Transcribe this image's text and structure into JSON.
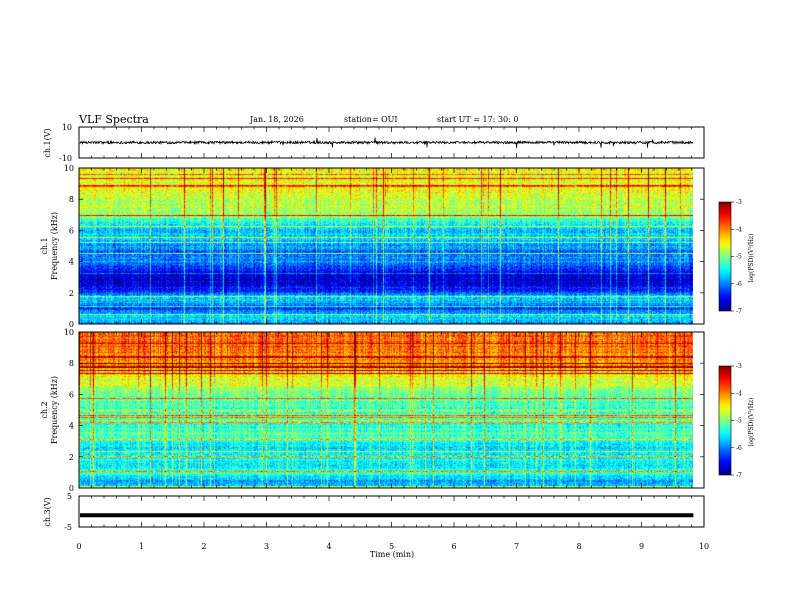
{
  "header": {
    "title": "VLF Spectra",
    "date": "Jan. 18, 2026",
    "station": "station= OUI",
    "start_time": "start  UT  =   17: 30: 0"
  },
  "chart_data": [
    {
      "type": "line",
      "panel": "ch1-waveform",
      "ylabel": "ch.1(V)",
      "ylim": [
        -10,
        10
      ],
      "yticks": [
        "10",
        "-10"
      ],
      "xlim": [
        0,
        10
      ],
      "series_color": "#000000"
    },
    {
      "type": "heatmap",
      "panel": "ch1-spectrogram",
      "ylabel": "ch.1\nFrequency (kHz)",
      "ylabel_lines": [
        "ch.1",
        "Frequency (kHz)"
      ],
      "ylim": [
        0,
        10
      ],
      "yticks": [
        "0",
        "2",
        "4",
        "6",
        "8",
        "10"
      ],
      "xlim": [
        0,
        9.83
      ],
      "colorbar": {
        "label": "log(PSD)(V²/Hz)",
        "range": [
          -7,
          -3
        ],
        "ticks": [
          "-3",
          "-4",
          "-5",
          "-6",
          "-7"
        ]
      },
      "profile": [
        {
          "f": 0.0,
          "v": -5.9
        },
        {
          "f": 0.5,
          "v": -5.6
        },
        {
          "f": 1.0,
          "v": -6.3
        },
        {
          "f": 1.6,
          "v": -5.5
        },
        {
          "f": 2.0,
          "v": -6.2
        },
        {
          "f": 2.5,
          "v": -6.6
        },
        {
          "f": 3.0,
          "v": -6.7
        },
        {
          "f": 3.5,
          "v": -6.4
        },
        {
          "f": 4.0,
          "v": -5.9
        },
        {
          "f": 4.5,
          "v": -6.1
        },
        {
          "f": 5.0,
          "v": -5.9
        },
        {
          "f": 5.5,
          "v": -5.6
        },
        {
          "f": 6.0,
          "v": -5.7
        },
        {
          "f": 6.5,
          "v": -5.5
        },
        {
          "f": 7.0,
          "v": -4.9
        },
        {
          "f": 7.5,
          "v": -4.8
        },
        {
          "f": 8.0,
          "v": -4.7
        },
        {
          "f": 8.5,
          "v": -4.6
        },
        {
          "f": 9.0,
          "v": -4.6
        },
        {
          "f": 9.5,
          "v": -4.5
        },
        {
          "f": 10.0,
          "v": -4.5
        }
      ]
    },
    {
      "type": "heatmap",
      "panel": "ch2-spectrogram",
      "ylabel": "ch.2\nFrequency (kHz)",
      "ylabel_lines": [
        "ch.2",
        "Frequency (kHz)"
      ],
      "ylim": [
        0,
        10
      ],
      "yticks": [
        "0",
        "2",
        "4",
        "6",
        "8",
        "10"
      ],
      "xlim": [
        0,
        9.83
      ],
      "colorbar": {
        "label": "log(PSD)(V²/Hz)",
        "range": [
          -7,
          -3
        ],
        "ticks": [
          "-3",
          "-4",
          "-5",
          "-6",
          "-7"
        ]
      },
      "profile": [
        {
          "f": 0.0,
          "v": -5.6
        },
        {
          "f": 0.5,
          "v": -5.9
        },
        {
          "f": 1.0,
          "v": -5.3
        },
        {
          "f": 1.5,
          "v": -5.6
        },
        {
          "f": 2.0,
          "v": -5.4
        },
        {
          "f": 2.5,
          "v": -5.6
        },
        {
          "f": 3.0,
          "v": -5.4
        },
        {
          "f": 3.5,
          "v": -5.2
        },
        {
          "f": 4.0,
          "v": -5.4
        },
        {
          "f": 4.5,
          "v": -5.2
        },
        {
          "f": 5.0,
          "v": -5.3
        },
        {
          "f": 5.5,
          "v": -5.2
        },
        {
          "f": 6.0,
          "v": -5.0
        },
        {
          "f": 6.5,
          "v": -4.8
        },
        {
          "f": 7.0,
          "v": -4.6
        },
        {
          "f": 7.5,
          "v": -4.3
        },
        {
          "f": 8.0,
          "v": -4.1
        },
        {
          "f": 8.5,
          "v": -4.0
        },
        {
          "f": 9.0,
          "v": -3.9
        },
        {
          "f": 9.5,
          "v": -3.9
        },
        {
          "f": 10.0,
          "v": -3.9
        }
      ]
    },
    {
      "type": "line",
      "panel": "ch3-waveform",
      "ylabel": "ch.3(V)",
      "ylim": [
        -5,
        5
      ],
      "yticks": [
        "5",
        "-5"
      ],
      "xlim": [
        0,
        10
      ],
      "constant_value": -1.2,
      "series_color": "#000000"
    }
  ],
  "xaxis": {
    "label": "Time (min)",
    "range": [
      0,
      10
    ],
    "ticks": [
      "0",
      "1",
      "2",
      "3",
      "4",
      "5",
      "6",
      "7",
      "8",
      "9",
      "10"
    ]
  }
}
